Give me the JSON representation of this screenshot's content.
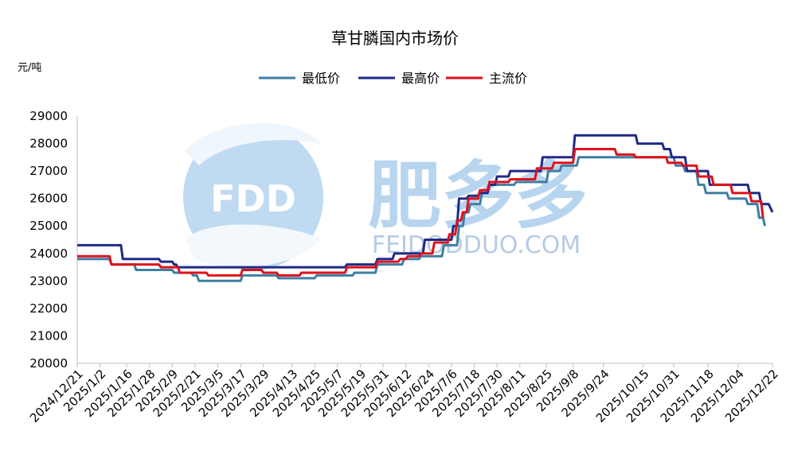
{
  "chart_data": {
    "type": "line",
    "title": "草甘膦国内市场价",
    "ylabel": "元/吨",
    "xlabel": "",
    "ylim": [
      20000,
      29000
    ],
    "y_ticks": [
      "29000",
      "28000",
      "27000",
      "26000",
      "25000",
      "24000",
      "23000",
      "22000",
      "21000",
      "20000"
    ],
    "x_ticks": [
      "2024/12/21",
      "2025/1/2",
      "2025/1/16",
      "2025/1/28",
      "2025/2/9",
      "2025/2/21",
      "2025/3/5",
      "2025/3/17",
      "2025/3/29",
      "2025/4/13",
      "2025/4/25",
      "2025/5/7",
      "2025/5/19",
      "2025/5/31",
      "2025/6/12",
      "2025/6/24",
      "2025/7/6",
      "2025/7/18",
      "2025/7/30",
      "2025/8/11",
      "2025/8/25",
      "2025/9/8",
      "2025/9/24",
      "2025/10/15",
      "2025/10/31",
      "2025/11/18",
      "2025/12/04",
      "2025/12/22"
    ],
    "legend_position": "top-center",
    "grid": false,
    "series": [
      {
        "name": "最低价",
        "color": "#3e7fa3",
        "points": [
          [
            "2024/12/21",
            23800
          ],
          [
            "2025/1/7",
            23800
          ],
          [
            "2025/1/8",
            23600
          ],
          [
            "2025/1/20",
            23600
          ],
          [
            "2025/1/21",
            23400
          ],
          [
            "2025/2/9",
            23400
          ],
          [
            "2025/2/10",
            23300
          ],
          [
            "2025/2/19",
            23300
          ],
          [
            "2025/2/20",
            23200
          ],
          [
            "2025/2/22",
            23200
          ],
          [
            "2025/2/23",
            23000
          ],
          [
            "2025/3/17",
            23000
          ],
          [
            "2025/3/18",
            23200
          ],
          [
            "2025/4/5",
            23200
          ],
          [
            "2025/4/6",
            23100
          ],
          [
            "2025/4/25",
            23100
          ],
          [
            "2025/4/26",
            23200
          ],
          [
            "2025/5/15",
            23200
          ],
          [
            "2025/5/16",
            23300
          ],
          [
            "2025/5/27",
            23300
          ],
          [
            "2025/5/28",
            23600
          ],
          [
            "2025/6/10",
            23600
          ],
          [
            "2025/6/11",
            23800
          ],
          [
            "2025/6/19",
            23800
          ],
          [
            "2025/6/20",
            23900
          ],
          [
            "2025/7/1",
            23900
          ],
          [
            "2025/7/2",
            24300
          ],
          [
            "2025/7/9",
            24300
          ],
          [
            "2025/7/10",
            25000
          ],
          [
            "2025/7/12",
            25000
          ],
          [
            "2025/7/13",
            25500
          ],
          [
            "2025/7/15",
            25500
          ],
          [
            "2025/7/16",
            25800
          ],
          [
            "2025/7/21",
            25800
          ],
          [
            "2025/7/22",
            26200
          ],
          [
            "2025/7/25",
            26200
          ],
          [
            "2025/7/26",
            26500
          ],
          [
            "2025/8/8",
            26500
          ],
          [
            "2025/8/9",
            26600
          ],
          [
            "2025/8/25",
            26600
          ],
          [
            "2025/8/26",
            27000
          ],
          [
            "2025/9/1",
            27000
          ],
          [
            "2025/9/2",
            27200
          ],
          [
            "2025/9/10",
            27200
          ],
          [
            "2025/9/11",
            27500
          ],
          [
            "2025/10/31",
            27500
          ],
          [
            "2025/11/1",
            27200
          ],
          [
            "2025/11/5",
            27200
          ],
          [
            "2025/11/6",
            27000
          ],
          [
            "2025/11/12",
            27000
          ],
          [
            "2025/11/13",
            26500
          ],
          [
            "2025/11/16",
            26500
          ],
          [
            "2025/11/17",
            26200
          ],
          [
            "2025/11/28",
            26200
          ],
          [
            "2025/11/29",
            26000
          ],
          [
            "2025/12/8",
            26000
          ],
          [
            "2025/12/9",
            25800
          ],
          [
            "2025/12/14",
            25800
          ],
          [
            "2025/12/15",
            25300
          ],
          [
            "2025/12/17",
            25300
          ],
          [
            "2025/12/18",
            25000
          ]
        ]
      },
      {
        "name": "最高价",
        "color": "#1f2a87",
        "points": [
          [
            "2024/12/21",
            24300
          ],
          [
            "2025/1/13",
            24300
          ],
          [
            "2025/1/14",
            23800
          ],
          [
            "2025/2/2",
            23800
          ],
          [
            "2025/2/3",
            23700
          ],
          [
            "2025/2/9",
            23700
          ],
          [
            "2025/2/10",
            23600
          ],
          [
            "2025/2/11",
            23600
          ],
          [
            "2025/2/12",
            23500
          ],
          [
            "2025/5/11",
            23500
          ],
          [
            "2025/5/12",
            23600
          ],
          [
            "2025/5/27",
            23600
          ],
          [
            "2025/5/28",
            23800
          ],
          [
            "2025/6/5",
            23800
          ],
          [
            "2025/6/6",
            24000
          ],
          [
            "2025/6/21",
            24000
          ],
          [
            "2025/6/22",
            24500
          ],
          [
            "2025/7/6",
            24500
          ],
          [
            "2025/7/7",
            25000
          ],
          [
            "2025/7/9",
            25000
          ],
          [
            "2025/7/10",
            26000
          ],
          [
            "2025/7/14",
            26000
          ],
          [
            "2025/7/15",
            26100
          ],
          [
            "2025/7/20",
            26100
          ],
          [
            "2025/7/21",
            26200
          ],
          [
            "2025/7/25",
            26200
          ],
          [
            "2025/7/26",
            26500
          ],
          [
            "2025/7/29",
            26500
          ],
          [
            "2025/7/30",
            26800
          ],
          [
            "2025/8/5",
            26800
          ],
          [
            "2025/8/6",
            27000
          ],
          [
            "2025/8/22",
            27000
          ],
          [
            "2025/8/23",
            27500
          ],
          [
            "2025/9/8",
            27500
          ],
          [
            "2025/9/9",
            28300
          ],
          [
            "2025/10/11",
            28300
          ],
          [
            "2025/10/12",
            28000
          ],
          [
            "2025/10/25",
            28000
          ],
          [
            "2025/10/26",
            27800
          ],
          [
            "2025/10/29",
            27800
          ],
          [
            "2025/10/30",
            27500
          ],
          [
            "2025/11/6",
            27500
          ],
          [
            "2025/11/7",
            27000
          ],
          [
            "2025/11/18",
            27000
          ],
          [
            "2025/11/19",
            26500
          ],
          [
            "2025/12/9",
            26500
          ],
          [
            "2025/12/10",
            26200
          ],
          [
            "2025/12/15",
            26200
          ],
          [
            "2025/12/16",
            25800
          ],
          [
            "2025/12/20",
            25800
          ],
          [
            "2025/12/22",
            25500
          ]
        ]
      },
      {
        "name": "主流价",
        "color": "#e0101c",
        "points": [
          [
            "2024/12/21",
            23900
          ],
          [
            "2025/1/7",
            23900
          ],
          [
            "2025/1/8",
            23600
          ],
          [
            "2025/2/2",
            23600
          ],
          [
            "2025/2/3",
            23500
          ],
          [
            "2025/2/12",
            23500
          ],
          [
            "2025/2/13",
            23300
          ],
          [
            "2025/2/27",
            23300
          ],
          [
            "2025/2/28",
            23200
          ],
          [
            "2025/3/17",
            23200
          ],
          [
            "2025/3/18",
            23400
          ],
          [
            "2025/3/28",
            23400
          ],
          [
            "2025/3/29",
            23300
          ],
          [
            "2025/4/5",
            23300
          ],
          [
            "2025/4/6",
            23200
          ],
          [
            "2025/4/17",
            23200
          ],
          [
            "2025/4/18",
            23300
          ],
          [
            "2025/5/11",
            23300
          ],
          [
            "2025/5/12",
            23500
          ],
          [
            "2025/5/27",
            23500
          ],
          [
            "2025/5/28",
            23700
          ],
          [
            "2025/6/8",
            23700
          ],
          [
            "2025/6/9",
            23800
          ],
          [
            "2025/6/12",
            23800
          ],
          [
            "2025/6/13",
            23900
          ],
          [
            "2025/6/19",
            23900
          ],
          [
            "2025/6/20",
            24000
          ],
          [
            "2025/6/26",
            24000
          ],
          [
            "2025/6/27",
            24400
          ],
          [
            "2025/7/4",
            24400
          ],
          [
            "2025/7/5",
            24700
          ],
          [
            "2025/7/8",
            24700
          ],
          [
            "2025/7/9",
            25200
          ],
          [
            "2025/7/11",
            25200
          ],
          [
            "2025/7/12",
            25500
          ],
          [
            "2025/7/14",
            25500
          ],
          [
            "2025/7/15",
            26000
          ],
          [
            "2025/7/20",
            26000
          ],
          [
            "2025/7/21",
            26300
          ],
          [
            "2025/7/25",
            26300
          ],
          [
            "2025/7/26",
            26600
          ],
          [
            "2025/8/5",
            26600
          ],
          [
            "2025/8/6",
            26700
          ],
          [
            "2025/8/19",
            26700
          ],
          [
            "2025/8/20",
            27100
          ],
          [
            "2025/8/28",
            27100
          ],
          [
            "2025/8/29",
            27300
          ],
          [
            "2025/9/8",
            27300
          ],
          [
            "2025/9/9",
            27800
          ],
          [
            "2025/9/30",
            27800
          ],
          [
            "2025/10/1",
            27600
          ],
          [
            "2025/10/10",
            27600
          ],
          [
            "2025/10/11",
            27500
          ],
          [
            "2025/10/27",
            27500
          ],
          [
            "2025/10/28",
            27300
          ],
          [
            "2025/11/4",
            27300
          ],
          [
            "2025/11/5",
            27200
          ],
          [
            "2025/11/12",
            27200
          ],
          [
            "2025/11/13",
            26800
          ],
          [
            "2025/11/20",
            26800
          ],
          [
            "2025/11/21",
            26500
          ],
          [
            "2025/11/30",
            26500
          ],
          [
            "2025/12/1",
            26200
          ],
          [
            "2025/12/10",
            26200
          ],
          [
            "2025/12/11",
            25900
          ],
          [
            "2025/12/16",
            25900
          ],
          [
            "2025/12/17",
            25300
          ]
        ]
      }
    ]
  },
  "watermark": {
    "logo_text": "FDD",
    "brand_cn": "肥多多",
    "brand_url": "FEIDODDUO.COM",
    "colors": {
      "light": "#9ec6ea",
      "mid": "#6f9fd6",
      "dark": "#3a6fb5"
    }
  }
}
